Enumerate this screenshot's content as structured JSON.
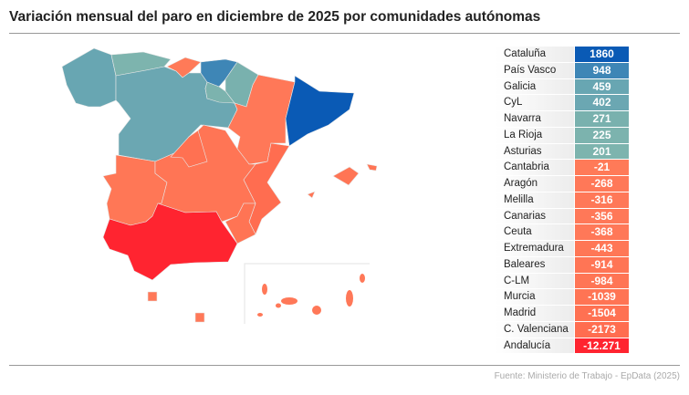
{
  "title": "Variación mensual del paro en diciembre de 2025 por comunidades autónomas",
  "footer": "Fuente: Ministerio de Trabajo - EpData (2025)",
  "chart_data": {
    "type": "table",
    "map_type": "choropleth",
    "rows": [
      {
        "region": "Cataluña",
        "value": "1860",
        "color": "#0a5ab5"
      },
      {
        "region": "País Vasco",
        "value": "948",
        "color": "#3e86b6"
      },
      {
        "region": "Galicia",
        "value": "459",
        "color": "#68a6b2"
      },
      {
        "region": "CyL",
        "value": "402",
        "color": "#6ba7b2"
      },
      {
        "region": "Navarra",
        "value": "271",
        "color": "#79b1ae"
      },
      {
        "region": "La Rioja",
        "value": "225",
        "color": "#7cb3ae"
      },
      {
        "region": "Asturias",
        "value": "201",
        "color": "#7db4ae"
      },
      {
        "region": "Cantabria",
        "value": "-21",
        "color": "#ff7a58"
      },
      {
        "region": "Aragón",
        "value": "-268",
        "color": "#ff7858"
      },
      {
        "region": "Melilla",
        "value": "-316",
        "color": "#ff7858"
      },
      {
        "region": "Canarias",
        "value": "-356",
        "color": "#ff7858"
      },
      {
        "region": "Ceuta",
        "value": "-368",
        "color": "#ff7858"
      },
      {
        "region": "Extremadura",
        "value": "-443",
        "color": "#ff7756"
      },
      {
        "region": "Baleares",
        "value": "-914",
        "color": "#ff7555"
      },
      {
        "region": "C-LM",
        "value": "-984",
        "color": "#ff7555"
      },
      {
        "region": "Murcia",
        "value": "-1039",
        "color": "#ff7454"
      },
      {
        "region": "Madrid",
        "value": "-1504",
        "color": "#ff7152"
      },
      {
        "region": "C. Valenciana",
        "value": "-2173",
        "color": "#ff6d50"
      },
      {
        "region": "Andalucía",
        "value": "-12.271",
        "color": "#ff2430"
      }
    ]
  }
}
